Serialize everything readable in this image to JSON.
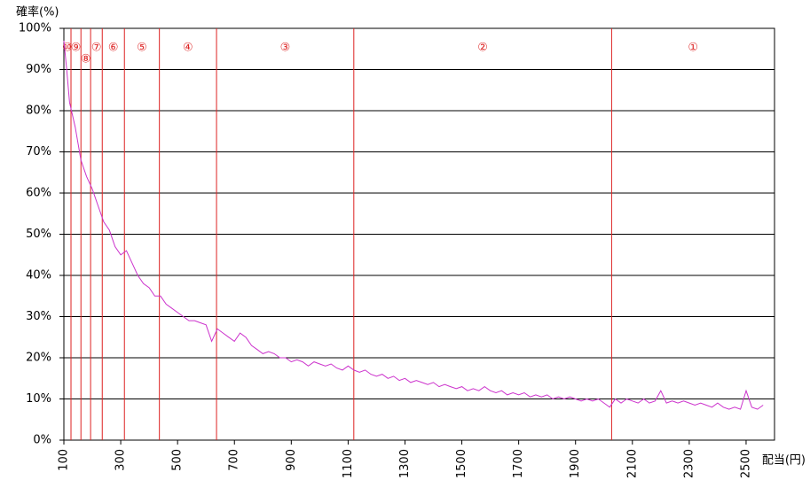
{
  "chart_data": {
    "type": "line",
    "y_label": "確率(%)",
    "x_label": "配当(円)",
    "xlim": [
      100,
      2600
    ],
    "ylim": [
      0,
      100
    ],
    "xticks": [
      100,
      300,
      500,
      700,
      900,
      1100,
      1300,
      1500,
      1700,
      1900,
      2100,
      2300,
      2500
    ],
    "yticks": [
      {
        "value": 0,
        "label": "0%"
      },
      {
        "value": 10,
        "label": "10%"
      },
      {
        "value": 20,
        "label": "20%"
      },
      {
        "value": 30,
        "label": "30%"
      },
      {
        "value": 40,
        "label": "40%"
      },
      {
        "value": 50,
        "label": "50%"
      },
      {
        "value": 60,
        "label": "60%"
      },
      {
        "value": 70,
        "label": "70%"
      },
      {
        "value": 80,
        "label": "80%"
      },
      {
        "value": 90,
        "label": "90%"
      },
      {
        "value": 100,
        "label": "100%"
      }
    ],
    "grid": true,
    "zone_color": "#dd2222",
    "zones": [
      {
        "label": "⑩",
        "end": 125
      },
      {
        "label": "⑨",
        "end": 160
      },
      {
        "label": "⑧",
        "end": 194
      },
      {
        "label": "⑦",
        "end": 235
      },
      {
        "label": "⑥",
        "end": 313
      },
      {
        "label": "⑤",
        "end": 436
      },
      {
        "label": "④",
        "end": 637
      },
      {
        "label": "③",
        "end": 1120
      },
      {
        "label": "②",
        "end": 2027
      },
      {
        "label": "①"
      }
    ],
    "series": [
      {
        "color": "#cc33cc",
        "x": [
          100,
          110,
          120,
          140,
          160,
          180,
          200,
          220,
          240,
          260,
          280,
          300,
          320,
          340,
          360,
          380,
          400,
          420,
          440,
          460,
          480,
          500,
          520,
          540,
          560,
          580,
          600,
          620,
          640,
          660,
          680,
          700,
          720,
          740,
          760,
          780,
          800,
          820,
          840,
          860,
          880,
          900,
          920,
          940,
          960,
          980,
          1000,
          1020,
          1040,
          1060,
          1080,
          1100,
          1120,
          1140,
          1160,
          1180,
          1200,
          1220,
          1240,
          1260,
          1280,
          1300,
          1320,
          1340,
          1360,
          1380,
          1400,
          1420,
          1440,
          1460,
          1480,
          1500,
          1520,
          1540,
          1560,
          1580,
          1600,
          1620,
          1640,
          1660,
          1680,
          1700,
          1720,
          1740,
          1760,
          1780,
          1800,
          1820,
          1840,
          1860,
          1880,
          1900,
          1920,
          1940,
          1960,
          1980,
          2000,
          2020,
          2040,
          2060,
          2080,
          2100,
          2120,
          2140,
          2160,
          2180,
          2200,
          2220,
          2240,
          2260,
          2280,
          2300,
          2320,
          2340,
          2360,
          2380,
          2400,
          2420,
          2440,
          2460,
          2480,
          2500,
          2520,
          2540,
          2560
        ],
        "values": [
          97,
          90,
          82,
          76,
          68,
          64,
          61,
          57,
          53,
          51,
          47,
          45,
          46,
          43,
          40,
          38,
          37,
          35,
          35,
          33,
          32,
          31,
          30,
          29,
          29,
          28.5,
          28,
          24,
          27,
          26,
          25,
          24,
          26,
          25,
          23,
          22,
          21,
          21.5,
          21,
          20,
          20,
          19,
          19.5,
          19,
          18,
          19,
          18.5,
          18,
          18.5,
          17.5,
          17,
          18,
          17,
          16.5,
          17,
          16,
          15.5,
          16,
          15,
          15.5,
          14.5,
          15,
          14,
          14.5,
          14,
          13.5,
          14,
          13,
          13.5,
          13,
          12.5,
          13,
          12,
          12.5,
          12,
          13,
          12,
          11.5,
          12,
          11,
          11.5,
          11,
          11.5,
          10.5,
          11,
          10.5,
          11,
          10,
          10.5,
          10,
          10.5,
          10,
          9.5,
          10,
          9.5,
          10,
          9,
          8,
          10,
          9,
          10,
          9.5,
          9,
          10,
          9,
          9.5,
          12,
          9,
          9.5,
          9,
          9.5,
          9,
          8.5,
          9,
          8.5,
          8,
          9,
          8,
          7.5,
          8,
          7.5,
          12,
          8,
          7.5,
          8.5
        ]
      }
    ]
  }
}
